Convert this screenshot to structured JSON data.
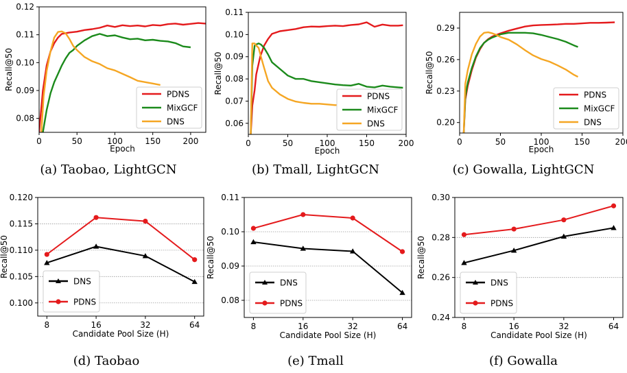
{
  "chart_data": [
    {
      "type": "line",
      "caption": "(a) Taobao, LightGCN",
      "xlabel": "Epoch",
      "ylabel": "Recall@50",
      "xlim": [
        0,
        220
      ],
      "ylim": [
        0.075,
        0.12
      ],
      "xticks": [
        0,
        50,
        100,
        150,
        200
      ],
      "yticks": [
        0.08,
        0.09,
        0.1,
        0.11,
        0.12
      ],
      "ytick_labels": [
        "0.08",
        "0.09",
        "0.10",
        "0.11",
        "0.12"
      ],
      "grid": false,
      "legend": "lower-right",
      "series": [
        {
          "name": "PDNS",
          "color": "#e41a1c",
          "x": [
            0,
            5,
            10,
            15,
            20,
            25,
            30,
            40,
            50,
            60,
            70,
            80,
            90,
            100,
            110,
            120,
            130,
            140,
            150,
            160,
            170,
            180,
            190,
            200,
            210,
            220
          ],
          "y": [
            0.075,
            0.09,
            0.099,
            0.104,
            0.107,
            0.109,
            0.1103,
            0.1108,
            0.1111,
            0.1117,
            0.112,
            0.1125,
            0.1133,
            0.1128,
            0.1134,
            0.1131,
            0.1133,
            0.113,
            0.1135,
            0.1133,
            0.1138,
            0.114,
            0.1136,
            0.1139,
            0.1142,
            0.114
          ]
        },
        {
          "name": "MixGCF",
          "color": "#1b8a1b",
          "x": [
            5,
            10,
            15,
            20,
            25,
            30,
            35,
            40,
            45,
            50,
            60,
            70,
            80,
            90,
            100,
            110,
            120,
            130,
            140,
            150,
            160,
            170,
            180,
            190,
            200
          ],
          "y": [
            0.075,
            0.083,
            0.089,
            0.093,
            0.096,
            0.099,
            0.1015,
            0.1035,
            0.1045,
            0.106,
            0.108,
            0.1095,
            0.1103,
            0.1095,
            0.1098,
            0.109,
            0.1084,
            0.1086,
            0.108,
            0.1082,
            0.1078,
            0.1076,
            0.107,
            0.1058,
            0.1055
          ]
        },
        {
          "name": "DNS",
          "color": "#f5a623",
          "x": [
            3,
            6,
            10,
            15,
            20,
            25,
            30,
            35,
            40,
            45,
            50,
            60,
            70,
            80,
            90,
            100,
            110,
            120,
            130,
            140,
            150,
            160
          ],
          "y": [
            0.075,
            0.088,
            0.097,
            0.104,
            0.109,
            0.111,
            0.1112,
            0.1105,
            0.1085,
            0.106,
            0.1045,
            0.102,
            0.1005,
            0.0995,
            0.098,
            0.0972,
            0.096,
            0.0948,
            0.0935,
            0.093,
            0.0925,
            0.092
          ]
        }
      ]
    },
    {
      "type": "line",
      "caption": "(b) Tmall, LightGCN",
      "xlabel": "Epoch",
      "ylabel": "Recall@50",
      "xlim": [
        0,
        200
      ],
      "ylim": [
        0.055,
        0.11
      ],
      "xticks": [
        0,
        50,
        100,
        150,
        200
      ],
      "yticks": [
        0.06,
        0.07,
        0.08,
        0.09,
        0.1,
        0.11
      ],
      "ytick_labels": [
        "0.06",
        "0.07",
        "0.08",
        "0.09",
        "0.10",
        "0.11"
      ],
      "grid": false,
      "legend": "lower-right",
      "series": [
        {
          "name": "PDNS",
          "color": "#e41a1c",
          "x": [
            3,
            5,
            8,
            10,
            15,
            20,
            25,
            30,
            40,
            50,
            60,
            70,
            80,
            90,
            100,
            110,
            120,
            130,
            140,
            150,
            160,
            170,
            180,
            190,
            196
          ],
          "y": [
            0.055,
            0.068,
            0.075,
            0.082,
            0.09,
            0.095,
            0.098,
            0.1003,
            0.1015,
            0.102,
            0.1025,
            0.1033,
            0.1036,
            0.1035,
            0.1038,
            0.104,
            0.1038,
            0.1043,
            0.1046,
            0.1055,
            0.1035,
            0.1045,
            0.104,
            0.104,
            0.1042
          ]
        },
        {
          "name": "MixGCF",
          "color": "#1b8a1b",
          "x": [
            3,
            5,
            8,
            10,
            13,
            16,
            20,
            25,
            30,
            40,
            50,
            60,
            70,
            80,
            90,
            100,
            110,
            120,
            130,
            140,
            150,
            160,
            170,
            180,
            190,
            196
          ],
          "y": [
            0.055,
            0.086,
            0.095,
            0.0955,
            0.096,
            0.0955,
            0.094,
            0.091,
            0.0875,
            0.0845,
            0.0815,
            0.08,
            0.08,
            0.079,
            0.0785,
            0.078,
            0.0775,
            0.0772,
            0.077,
            0.0778,
            0.0765,
            0.0762,
            0.077,
            0.0765,
            0.0762,
            0.076
          ]
        },
        {
          "name": "DNS",
          "color": "#f5a623",
          "x": [
            3,
            5,
            8,
            10,
            13,
            16,
            20,
            25,
            30,
            40,
            50,
            60,
            70,
            80,
            90,
            100,
            110,
            120,
            130
          ],
          "y": [
            0.055,
            0.096,
            0.096,
            0.095,
            0.094,
            0.09,
            0.085,
            0.079,
            0.076,
            0.073,
            0.071,
            0.0698,
            0.0692,
            0.0688,
            0.0688,
            0.0685,
            0.0682,
            0.0683,
            0.0678
          ]
        }
      ]
    },
    {
      "type": "line",
      "caption": "(c) Gowalla, LightGCN",
      "xlabel": "Epoch",
      "ylabel": "Recall@50",
      "xlim": [
        0,
        200
      ],
      "ylim": [
        0.19,
        0.305
      ],
      "xticks": [
        0,
        50,
        100,
        150,
        200
      ],
      "yticks": [
        0.2,
        0.23,
        0.26,
        0.29
      ],
      "ytick_labels": [
        "0.20",
        "0.23",
        "0.26",
        "0.29"
      ],
      "grid": false,
      "legend": "lower-right",
      "series": [
        {
          "name": "PDNS",
          "color": "#e41a1c",
          "x": [
            5,
            7,
            10,
            15,
            20,
            25,
            30,
            35,
            40,
            50,
            60,
            70,
            80,
            90,
            100,
            110,
            120,
            130,
            140,
            150,
            160,
            170,
            180,
            190
          ],
          "y": [
            0.19,
            0.222,
            0.235,
            0.25,
            0.262,
            0.27,
            0.276,
            0.2795,
            0.282,
            0.285,
            0.2875,
            0.2895,
            0.2915,
            0.2925,
            0.293,
            0.2932,
            0.2935,
            0.294,
            0.294,
            0.2945,
            0.295,
            0.295,
            0.2952,
            0.2955
          ]
        },
        {
          "name": "MixGCF",
          "color": "#1b8a1b",
          "x": [
            5,
            7,
            10,
            15,
            20,
            25,
            30,
            35,
            40,
            50,
            60,
            70,
            80,
            90,
            100,
            110,
            120,
            130,
            140,
            145
          ],
          "y": [
            0.19,
            0.225,
            0.238,
            0.252,
            0.263,
            0.271,
            0.276,
            0.279,
            0.281,
            0.284,
            0.2855,
            0.2855,
            0.2855,
            0.285,
            0.2835,
            0.2815,
            0.2795,
            0.277,
            0.2735,
            0.272
          ]
        },
        {
          "name": "DNS",
          "color": "#f5a623",
          "x": [
            5,
            7,
            10,
            15,
            20,
            25,
            30,
            35,
            40,
            45,
            50,
            60,
            70,
            80,
            90,
            100,
            110,
            120,
            130,
            140,
            145
          ],
          "y": [
            0.19,
            0.237,
            0.25,
            0.265,
            0.275,
            0.282,
            0.2855,
            0.286,
            0.285,
            0.2835,
            0.2815,
            0.279,
            0.2745,
            0.269,
            0.264,
            0.2605,
            0.258,
            0.2545,
            0.2505,
            0.2455,
            0.2435
          ]
        }
      ]
    },
    {
      "type": "line",
      "caption": "(d) Taobao",
      "xlabel": "Candidate Pool Size (H)",
      "ylabel": "Recall@50",
      "categories": [
        "8",
        "16",
        "32",
        "64"
      ],
      "ylim": [
        0.0975,
        0.12
      ],
      "yticks": [
        0.1,
        0.105,
        0.11,
        0.115,
        0.12
      ],
      "ytick_labels": [
        "0.100",
        "0.105",
        "0.110",
        "0.115",
        "0.120"
      ],
      "grid": true,
      "legend": "lower-left",
      "series": [
        {
          "name": "DNS",
          "color": "#000000",
          "marker": "triangle",
          "values": [
            0.1076,
            0.1107,
            0.1089,
            0.104
          ]
        },
        {
          "name": "PDNS",
          "color": "#e41a1c",
          "marker": "circle",
          "values": [
            0.1092,
            0.1162,
            0.1155,
            0.1082
          ]
        }
      ]
    },
    {
      "type": "line",
      "caption": "(e) Tmall",
      "xlabel": "Candidate Pool Size (H)",
      "ylabel": "Recall@50",
      "categories": [
        "8",
        "16",
        "32",
        "64"
      ],
      "ylim": [
        0.075,
        0.11
      ],
      "yticks": [
        0.08,
        0.09,
        0.1,
        0.11
      ],
      "ytick_labels": [
        "0.08",
        "0.09",
        "0.10",
        "0.11"
      ],
      "grid": true,
      "legend": "lower-left",
      "series": [
        {
          "name": "DNS",
          "color": "#000000",
          "marker": "triangle",
          "values": [
            0.097,
            0.0951,
            0.0943,
            0.0822
          ]
        },
        {
          "name": "PDNS",
          "color": "#e41a1c",
          "marker": "circle",
          "values": [
            0.101,
            0.105,
            0.104,
            0.0942
          ]
        }
      ]
    },
    {
      "type": "line",
      "caption": "(f) Gowalla",
      "xlabel": "Candidate Pool Size (H)",
      "ylabel": "Recall@50",
      "categories": [
        "8",
        "16",
        "32",
        "64"
      ],
      "ylim": [
        0.24,
        0.3
      ],
      "yticks": [
        0.24,
        0.26,
        0.28,
        0.3
      ],
      "ytick_labels": [
        "0.24",
        "0.26",
        "0.28",
        "0.30"
      ],
      "grid": true,
      "legend": "lower-left",
      "series": [
        {
          "name": "DNS",
          "color": "#000000",
          "marker": "triangle",
          "values": [
            0.2673,
            0.2735,
            0.2805,
            0.2848
          ]
        },
        {
          "name": "PDNS",
          "color": "#e41a1c",
          "marker": "circle",
          "values": [
            0.2814,
            0.2842,
            0.2888,
            0.2958
          ]
        }
      ]
    }
  ]
}
